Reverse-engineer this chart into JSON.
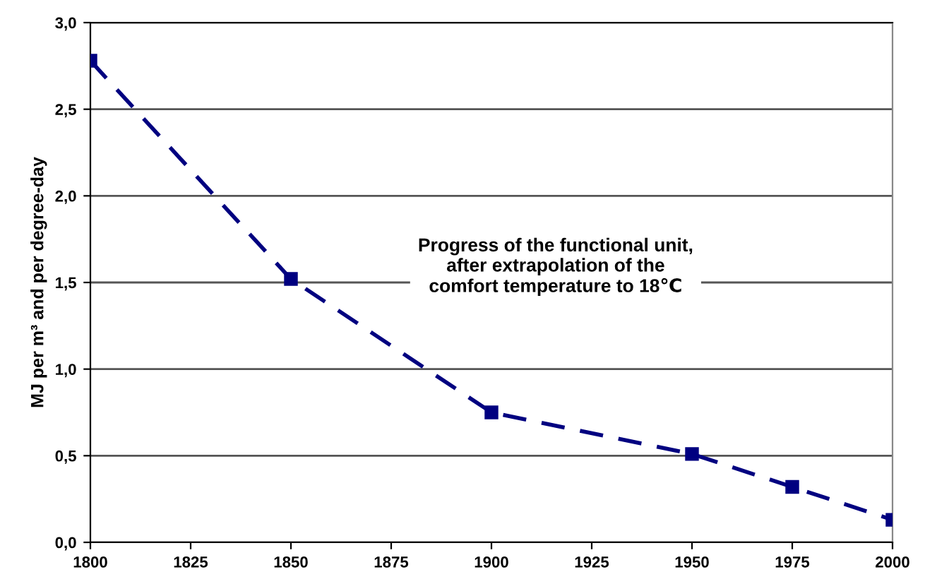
{
  "chart_data": {
    "type": "line",
    "ylabel": "MJ per m³ and per degree-day",
    "x": [
      1800,
      1850,
      1900,
      1950,
      1975,
      2000
    ],
    "series": [
      {
        "color": "#000080",
        "values": [
          2.78,
          1.52,
          0.75,
          0.51,
          0.32,
          0.13
        ]
      }
    ],
    "marker": "square",
    "line_style": "dashed",
    "grid": "y",
    "xlim": [
      1800,
      2000
    ],
    "xticks": [
      1800,
      1825,
      1850,
      1875,
      1900,
      1925,
      1950,
      1975,
      2000
    ],
    "ylim": [
      0,
      3
    ],
    "yticks": [
      {
        "value": 0,
        "label": "0,0"
      },
      {
        "value": 0.5,
        "label": "0,5"
      },
      {
        "value": 1,
        "label": "1,0"
      },
      {
        "value": 1.5,
        "label": "1,5"
      },
      {
        "value": 2,
        "label": "2,0"
      },
      {
        "value": 2.5,
        "label": "2,5"
      },
      {
        "value": 3,
        "label": "3,0"
      }
    ],
    "annotations": [
      "Progress of the functional unit,\nafter extrapolation of the\ncomfort temperature to 18℃"
    ]
  }
}
